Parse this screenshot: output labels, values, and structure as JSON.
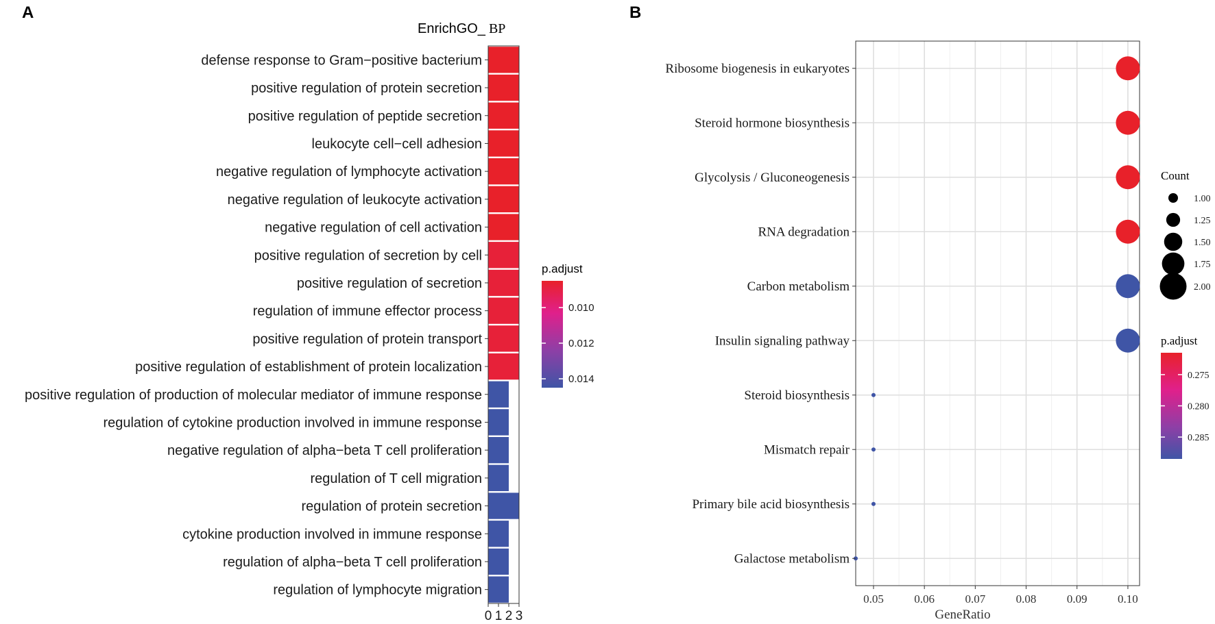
{
  "chart_data": [
    {
      "panel_label": "A",
      "type": "bar",
      "orientation": "horizontal",
      "title_prefix": "EnrichGO_",
      "title_suffix": "BP",
      "categories": [
        "defense response to Gram−positive bacterium",
        "positive regulation of protein secretion",
        "positive regulation of peptide secretion",
        "leukocyte cell−cell adhesion",
        "negative regulation of lymphocyte activation",
        "negative regulation of leukocyte activation",
        "negative regulation of cell activation",
        "positive regulation of secretion by cell",
        "positive regulation of secretion",
        "regulation of immune effector process",
        "positive regulation of protein transport",
        "positive regulation of establishment of protein localization",
        "positive regulation of production of molecular mediator of immune response",
        "regulation of cytokine production involved in immune response",
        "negative regulation of alpha−beta T cell proliferation",
        "regulation of T cell migration",
        "regulation of protein secretion",
        "cytokine production involved in immune response",
        "regulation of alpha−beta T cell proliferation",
        "regulation of lymphocyte migration"
      ],
      "values": [
        3,
        3,
        3,
        3,
        3,
        3,
        3,
        3,
        3,
        3,
        3,
        3,
        2,
        2,
        2,
        2,
        3,
        2,
        2,
        2
      ],
      "p_adjust": [
        0.0085,
        0.0085,
        0.0085,
        0.0085,
        0.0085,
        0.0085,
        0.0085,
        0.0088,
        0.0088,
        0.0088,
        0.0088,
        0.0088,
        0.0145,
        0.0145,
        0.0145,
        0.0145,
        0.0145,
        0.0145,
        0.0145,
        0.0145
      ],
      "x_ticks": [
        "0",
        "1",
        "2",
        "3"
      ],
      "xlim": [
        0,
        3
      ],
      "xlabel": "",
      "ylabel": "",
      "legend": {
        "title": "p.adjust",
        "ticks": [
          "0.010",
          "0.012",
          "0.014"
        ],
        "range": [
          0.0085,
          0.0145
        ],
        "colors": [
          "#e8212a",
          "#e0208b",
          "#8e3fa6",
          "#3f55a6"
        ],
        "placement": "right"
      }
    },
    {
      "panel_label": "B",
      "type": "scatter",
      "xlabel": "GeneRatio",
      "ylabel": "",
      "xlim": [
        0.0465,
        0.1023
      ],
      "x_ticks": [
        "0.05",
        "0.06",
        "0.07",
        "0.08",
        "0.09",
        "0.10"
      ],
      "grid": true,
      "categories": [
        "Ribosome biogenesis in eukaryotes",
        "Steroid hormone biosynthesis",
        "Glycolysis / Gluconeogenesis",
        "RNA degradation",
        "Carbon metabolism",
        "Insulin signaling pathway",
        "Steroid biosynthesis",
        "Mismatch repair",
        "Primary bile acid biosynthesis",
        "Galactose metabolism"
      ],
      "x": [
        0.1,
        0.1,
        0.1,
        0.1,
        0.1,
        0.1,
        0.05,
        0.05,
        0.05,
        0.0465
      ],
      "counts": [
        2,
        2,
        2,
        2,
        2,
        2,
        1,
        1,
        1,
        1
      ],
      "p_adjust": [
        0.2715,
        0.2715,
        0.2715,
        0.2715,
        0.2885,
        0.2885,
        0.2885,
        0.2885,
        0.2885,
        0.2885
      ],
      "size_legend": {
        "title": "Count",
        "values": [
          1.0,
          1.25,
          1.5,
          1.75,
          2.0
        ],
        "labels": [
          "1.00",
          "1.25",
          "1.50",
          "1.75",
          "2.00"
        ]
      },
      "color_legend": {
        "title": "p.adjust",
        "ticks": [
          "0.275",
          "0.280",
          "0.285"
        ],
        "tick_values": [
          0.275,
          0.28,
          0.285
        ],
        "range": [
          0.2715,
          0.2885
        ],
        "colors": [
          "#e8212a",
          "#e0208b",
          "#8e3fa6",
          "#3f55a6"
        ],
        "placement": "right"
      }
    }
  ]
}
